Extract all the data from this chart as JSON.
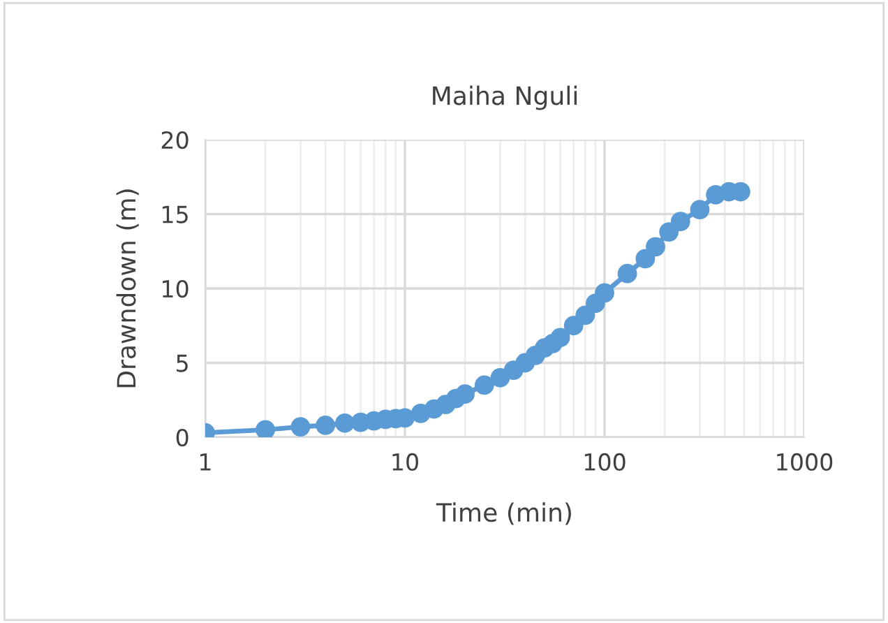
{
  "chart_data": {
    "type": "line",
    "title": "Maiha Nguli",
    "xlabel": "Time (min)",
    "ylabel": "Drawndown (m)",
    "log": "x",
    "xlim": [
      1,
      1000
    ],
    "xticks": [
      1,
      10,
      100,
      1000
    ],
    "ylim": [
      0,
      20
    ],
    "yticks": [
      0,
      5,
      10,
      15,
      20
    ],
    "grid": true,
    "marker": "circle",
    "line_style": "solid",
    "series": [
      {
        "color": "#5b9bd5",
        "x": [
          1,
          2,
          3,
          4,
          5,
          6,
          7,
          8,
          9,
          10,
          12,
          14,
          16,
          18,
          20,
          25,
          30,
          35,
          40,
          45,
          50,
          55,
          60,
          70,
          80,
          90,
          100,
          130,
          160,
          180,
          210,
          240,
          300,
          360,
          420,
          480
        ],
        "values": [
          0.3,
          0.5,
          0.7,
          0.8,
          0.95,
          1.0,
          1.1,
          1.2,
          1.25,
          1.3,
          1.6,
          1.9,
          2.2,
          2.6,
          2.9,
          3.5,
          4.0,
          4.5,
          5.0,
          5.5,
          6.0,
          6.3,
          6.7,
          7.5,
          8.2,
          9.0,
          9.7,
          11.0,
          12.0,
          12.8,
          13.8,
          14.5,
          15.3,
          16.3,
          16.5,
          16.5
        ]
      }
    ]
  }
}
